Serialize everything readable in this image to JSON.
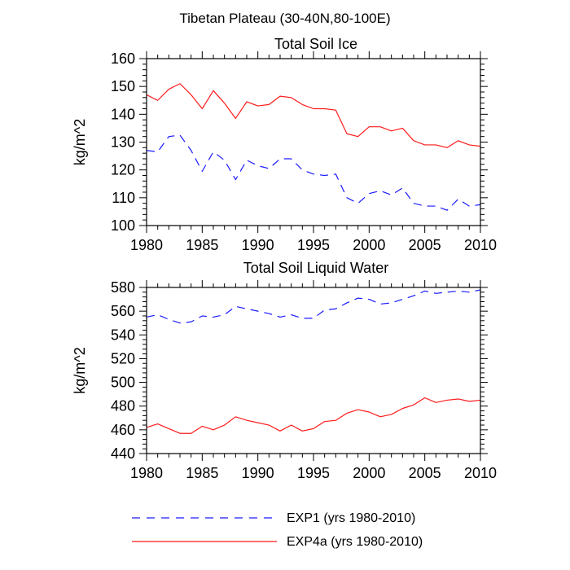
{
  "figure": {
    "title": "Tibetan Plateau (30-40N,80-100E)"
  },
  "colors": {
    "exp1": "#1a1aff",
    "exp4a": "#ff1a1a",
    "axis": "#000000"
  },
  "legend": {
    "exp1_label": "EXP1 (yrs 1980-2010)",
    "exp4a_label": "EXP4a (yrs 1980-2010)",
    "placement": "bottom"
  },
  "chart_data": [
    {
      "type": "line",
      "title": "Total Soil Ice",
      "xlabel": "",
      "ylabel": "kg/m^2",
      "xlim": [
        1980,
        2010
      ],
      "ylim": [
        100,
        160
      ],
      "x_ticks": [
        1980,
        1985,
        1990,
        1995,
        2000,
        2005,
        2010
      ],
      "y_ticks": [
        100,
        110,
        120,
        130,
        140,
        150,
        160
      ],
      "grid": false,
      "x": [
        1980,
        1981,
        1982,
        1983,
        1984,
        1985,
        1986,
        1987,
        1988,
        1989,
        1990,
        1991,
        1992,
        1993,
        1994,
        1995,
        1996,
        1997,
        1998,
        1999,
        2000,
        2001,
        2002,
        2003,
        2004,
        2005,
        2006,
        2007,
        2008,
        2009,
        2010
      ],
      "series": [
        {
          "name": "EXP1 (yrs 1980-2010)",
          "style": "dashed",
          "color": "#1a1aff",
          "values": [
            127,
            126.5,
            132,
            132.5,
            127,
            119.5,
            126.5,
            123.5,
            116.5,
            123.5,
            121.5,
            120.5,
            124,
            124,
            120,
            118.5,
            118,
            118.5,
            110,
            108,
            111.5,
            112.5,
            111,
            113.5,
            108,
            107,
            107,
            105.5,
            109.5,
            107,
            107.5
          ]
        },
        {
          "name": "EXP4a (yrs 1980-2010)",
          "style": "solid",
          "color": "#ff1a1a",
          "values": [
            147,
            145,
            149,
            151,
            147,
            142,
            148.5,
            144,
            138.5,
            144.5,
            143,
            143.5,
            146.5,
            146,
            143.5,
            142,
            142,
            141.5,
            133,
            132,
            135.5,
            135.5,
            134,
            135,
            130.5,
            129,
            129,
            128,
            130.5,
            129,
            128.5
          ]
        }
      ]
    },
    {
      "type": "line",
      "title": "Total Soil Liquid Water",
      "xlabel": "",
      "ylabel": "kg/m^2",
      "xlim": [
        1980,
        2010
      ],
      "ylim": [
        440,
        580
      ],
      "x_ticks": [
        1980,
        1985,
        1990,
        1995,
        2000,
        2005,
        2010
      ],
      "y_ticks": [
        440,
        460,
        480,
        500,
        520,
        540,
        560,
        580
      ],
      "grid": false,
      "x": [
        1980,
        1981,
        1982,
        1983,
        1984,
        1985,
        1986,
        1987,
        1988,
        1989,
        1990,
        1991,
        1992,
        1993,
        1994,
        1995,
        1996,
        1997,
        1998,
        1999,
        2000,
        2001,
        2002,
        2003,
        2004,
        2005,
        2006,
        2007,
        2008,
        2009,
        2010
      ],
      "series": [
        {
          "name": "EXP1 (yrs 1980-2010)",
          "style": "dashed",
          "color": "#1a1aff",
          "values": [
            555,
            557,
            553,
            550,
            551,
            556,
            555,
            557,
            564,
            562,
            560,
            558,
            555,
            557,
            554,
            554,
            561,
            562,
            567,
            571,
            570,
            566,
            567,
            570,
            573,
            577,
            575,
            576,
            577,
            576,
            578
          ]
        },
        {
          "name": "EXP4a (yrs 1980-2010)",
          "style": "solid",
          "color": "#ff1a1a",
          "values": [
            462,
            465,
            461,
            457,
            457,
            463,
            460,
            464,
            471,
            468,
            466,
            464,
            459,
            464,
            459,
            461,
            467,
            468,
            474,
            477,
            475,
            471,
            473,
            478,
            481,
            487,
            483,
            485,
            486,
            484,
            485
          ]
        }
      ]
    }
  ]
}
